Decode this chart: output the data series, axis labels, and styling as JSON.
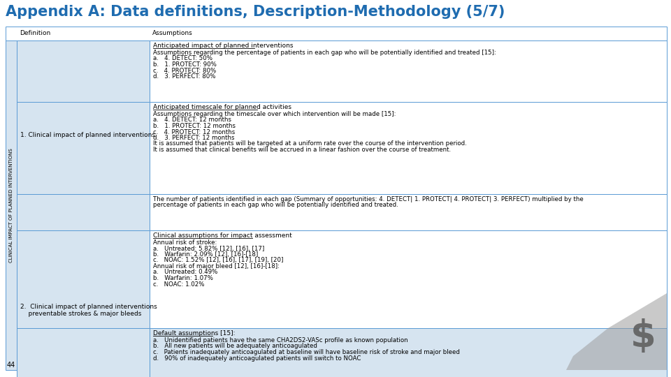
{
  "title": "Appendix A: Data definitions, Description-Methodology (5/7)",
  "title_color": "#1F6CB0",
  "title_fontsize": 15,
  "background_color": "#FFFFFF",
  "row_bg_light": "#D6E4F0",
  "row_bg_white": "#FFFFFF",
  "border_color": "#5B9BD5",
  "header_col1": "Definition",
  "header_col2": "Assumptions",
  "rotated_label": "CLINICAL IMPACT OF PLANNED INTERVENTIONS",
  "col1_row1": "1. Clinical impact of planned interventions",
  "col1_row2_line1": "2.  Clinical impact of planned interventions",
  "col1_row2_line2": "    preventable strokes & major bleeds",
  "cells": [
    {
      "row": 0,
      "underline": "Anticipated impact of planned interventions",
      "lines": [
        "Assumptions regarding the percentage of patients in each gap who will be potentially identified and treated [15]:",
        "a.   4. DETECT: 50%",
        "b.   1. PROTECT: 90%",
        "c.   4. PROTECT: 80%",
        "d.   3. PERFECT: 80%"
      ]
    },
    {
      "row": 1,
      "underline": "Anticipated timescale for planned activities",
      "lines": [
        "Assumptions regarding the timescale over which intervention will be made [15]:",
        "a.   4. DETECT: 12 months",
        "b.   1. PROTECT: 12 months",
        "c.   4. PROTECT: 12 months",
        "d.   3. PERFECT: 12 months",
        "It is assumed that patients will be targeted at a uniform rate over the course of the intervention period.",
        "It is assumed that clinical benefits will be accrued in a linear fashion over the course of treatment."
      ]
    },
    {
      "row": 2,
      "underline": null,
      "lines": [
        "The number of patients identified in each gap (Summary of opportunities: 4. DETECT| 1. PROTECT| 4. PROTECT| 3. PERFECT) multiplied by the",
        "percentage of patients in each gap who will be potentially identified and treated."
      ]
    },
    {
      "row": 3,
      "underline": "Clinical assumptions for impact assessment",
      "lines": [
        "Annual risk of stroke:",
        "a.   Untreated: 5.82% [12], [16], [17]",
        "b.   Warfarin: 2.09% [12], [16]-[18]",
        "c.   NOAC: 1.52% [12], [16], [17], [19], [20]",
        "Annual risk of major bleed [12], [16]-[18]:",
        "a.   Untreated: 0.49%",
        "b.   Warfarin: 1.07%",
        "c.   NOAC: 1.02%"
      ]
    },
    {
      "row": 4,
      "underline": "Default assumptions [15]:",
      "lines": [
        "a.   Unidentified patients have the same CHA2DS2-VASc profile as known population",
        "b.   All new patients will be adequately anticoagulated",
        "c.   Patients inadequately anticoagulated at baseline will have baseline risk of stroke and major bleed",
        "d.   90% of inadequately anticoagulated patients will switch to NOAC"
      ]
    }
  ],
  "page_number": "44"
}
